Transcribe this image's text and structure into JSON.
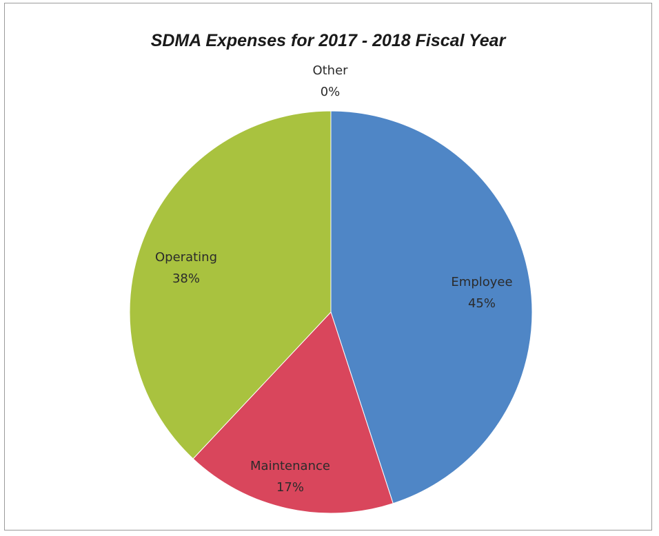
{
  "chart_data": {
    "type": "pie",
    "title": "SDMA Expenses for 2017 - 2018 Fiscal Year",
    "slices": [
      {
        "label": "Employee",
        "value": 45,
        "pct_text": "45%",
        "color": "#4f86c6"
      },
      {
        "label": "Maintenance",
        "value": 17,
        "pct_text": "17%",
        "color": "#d9465c"
      },
      {
        "label": "Operating",
        "value": 38,
        "pct_text": "38%",
        "color": "#a9c23f"
      },
      {
        "label": "Other",
        "value": 0,
        "pct_text": "0%",
        "color": "#8064a2"
      }
    ],
    "start": "12 o'clock, clockwise",
    "legend": "none"
  }
}
